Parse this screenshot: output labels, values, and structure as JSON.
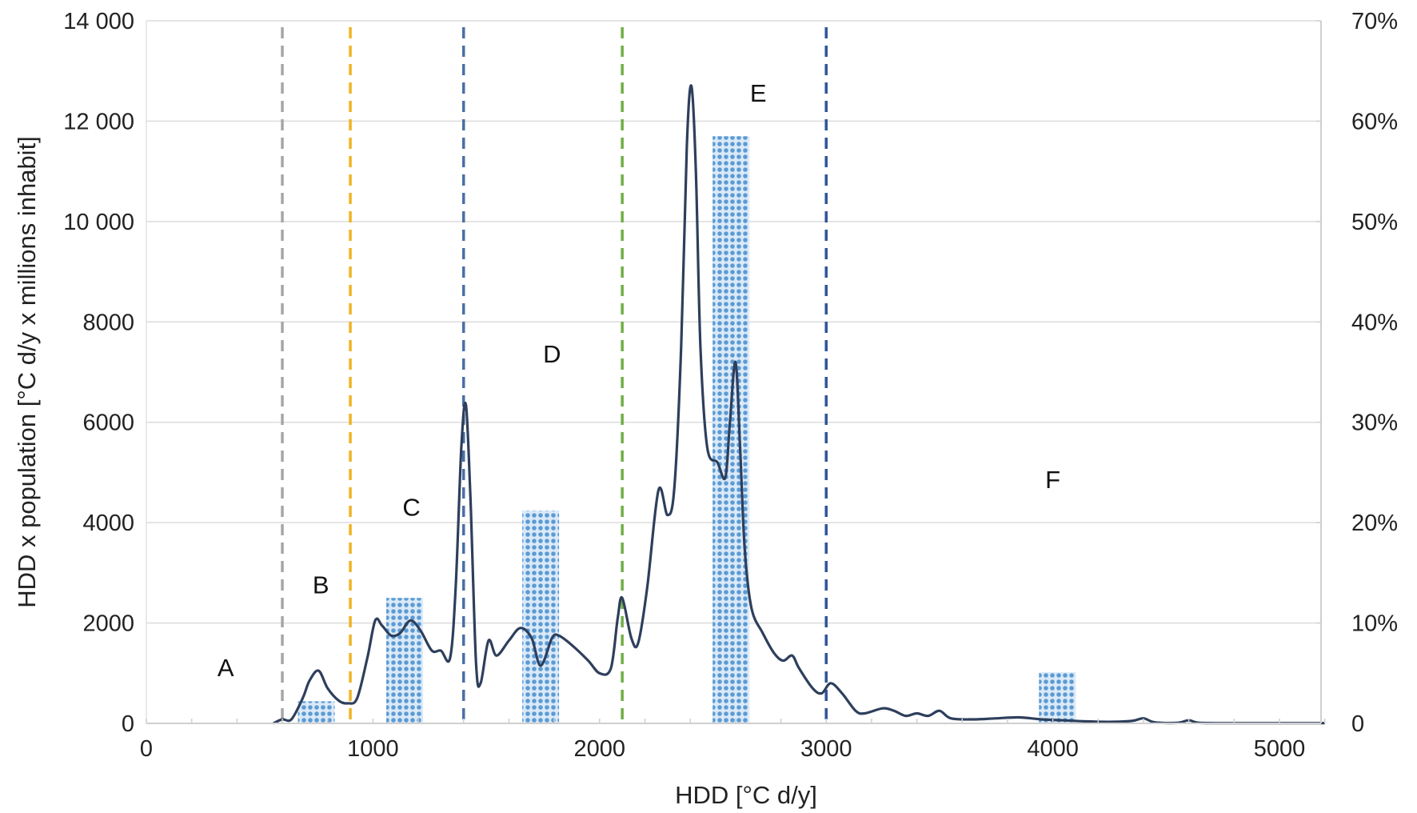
{
  "chart_data": {
    "type": "line",
    "xlabel": "HDD [°C d/y]",
    "ylabel": "HDD x population [°C d/y x millions inhabit]",
    "xlim": [
      0,
      5200
    ],
    "ylim_left": [
      0,
      14000
    ],
    "ylim_right": [
      0,
      0.7
    ],
    "grid": "horizontal",
    "x_ticks": [
      {
        "value": 0,
        "label": "0"
      },
      {
        "value": 1000,
        "label": "1000"
      },
      {
        "value": 2000,
        "label": "2000"
      },
      {
        "value": 3000,
        "label": "3000"
      },
      {
        "value": 4000,
        "label": "4000"
      },
      {
        "value": 5000,
        "label": "5000"
      }
    ],
    "y_ticks_left": [
      {
        "value": 0,
        "label": "0"
      },
      {
        "value": 2000,
        "label": "2000"
      },
      {
        "value": 4000,
        "label": "4000"
      },
      {
        "value": 6000,
        "label": "6000"
      },
      {
        "value": 8000,
        "label": "8000"
      },
      {
        "value": 10000,
        "label": "10 000"
      },
      {
        "value": 12000,
        "label": "12 000"
      },
      {
        "value": 14000,
        "label": "14 000"
      }
    ],
    "y_ticks_right": [
      {
        "value": 0,
        "label": "0"
      },
      {
        "value": 0.1,
        "label": "10%"
      },
      {
        "value": 0.2,
        "label": "20%"
      },
      {
        "value": 0.3,
        "label": "30%"
      },
      {
        "value": 0.4,
        "label": "40%"
      },
      {
        "value": 0.5,
        "label": "50%"
      },
      {
        "value": 0.6,
        "label": "60%"
      },
      {
        "value": 0.7,
        "label": "70%"
      }
    ],
    "bars": {
      "axis": "right",
      "color": "#5b9bd5",
      "items": [
        {
          "x": 750,
          "value": 0.022
        },
        {
          "x": 1140,
          "value": 0.125
        },
        {
          "x": 1740,
          "value": 0.212
        },
        {
          "x": 2580,
          "value": 0.585
        },
        {
          "x": 4020,
          "value": 0.051
        }
      ]
    },
    "boundaries": [
      {
        "x": 600,
        "color": "#a6a6a6"
      },
      {
        "x": 900,
        "color": "#f0b323"
      },
      {
        "x": 1400,
        "color": "#4a6fa5"
      },
      {
        "x": 2100,
        "color": "#70ad47"
      },
      {
        "x": 3000,
        "color": "#2f5597"
      }
    ],
    "regions": [
      {
        "label": "A",
        "x": 350,
        "y": 1100
      },
      {
        "label": "B",
        "x": 770,
        "y": 2750
      },
      {
        "label": "C",
        "x": 1170,
        "y": 4300
      },
      {
        "label": "D",
        "x": 1790,
        "y": 7350
      },
      {
        "label": "E",
        "x": 2700,
        "y": 12550
      },
      {
        "label": "F",
        "x": 4000,
        "y": 4850
      }
    ],
    "series": [
      {
        "axis": "left",
        "color": "#2e3f5c",
        "points": [
          [
            560,
            0
          ],
          [
            600,
            80
          ],
          [
            640,
            80
          ],
          [
            690,
            500
          ],
          [
            720,
            850
          ],
          [
            760,
            1050
          ],
          [
            800,
            700
          ],
          [
            850,
            450
          ],
          [
            890,
            400
          ],
          [
            930,
            500
          ],
          [
            975,
            1300
          ],
          [
            1010,
            2050
          ],
          [
            1040,
            1950
          ],
          [
            1080,
            1750
          ],
          [
            1120,
            1800
          ],
          [
            1165,
            2050
          ],
          [
            1210,
            1850
          ],
          [
            1260,
            1450
          ],
          [
            1300,
            1450
          ],
          [
            1340,
            1300
          ],
          [
            1365,
            2700
          ],
          [
            1390,
            5500
          ],
          [
            1410,
            6350
          ],
          [
            1430,
            4500
          ],
          [
            1455,
            1200
          ],
          [
            1475,
            800
          ],
          [
            1510,
            1650
          ],
          [
            1545,
            1350
          ],
          [
            1600,
            1650
          ],
          [
            1650,
            1900
          ],
          [
            1700,
            1700
          ],
          [
            1740,
            1150
          ],
          [
            1790,
            1700
          ],
          [
            1820,
            1750
          ],
          [
            1880,
            1550
          ],
          [
            1950,
            1250
          ],
          [
            2000,
            1000
          ],
          [
            2050,
            1100
          ],
          [
            2080,
            2100
          ],
          [
            2100,
            2500
          ],
          [
            2140,
            1700
          ],
          [
            2170,
            1600
          ],
          [
            2210,
            2700
          ],
          [
            2260,
            4650
          ],
          [
            2300,
            4150
          ],
          [
            2330,
            4700
          ],
          [
            2360,
            7500
          ],
          [
            2385,
            11500
          ],
          [
            2405,
            12700
          ],
          [
            2425,
            11000
          ],
          [
            2445,
            7500
          ],
          [
            2475,
            5500
          ],
          [
            2520,
            5200
          ],
          [
            2555,
            4900
          ],
          [
            2575,
            6000
          ],
          [
            2600,
            7200
          ],
          [
            2620,
            5500
          ],
          [
            2640,
            3500
          ],
          [
            2670,
            2300
          ],
          [
            2720,
            1800
          ],
          [
            2770,
            1400
          ],
          [
            2810,
            1250
          ],
          [
            2850,
            1350
          ],
          [
            2880,
            1100
          ],
          [
            2940,
            700
          ],
          [
            2980,
            600
          ],
          [
            3020,
            800
          ],
          [
            3070,
            600
          ],
          [
            3130,
            250
          ],
          [
            3170,
            200
          ],
          [
            3250,
            300
          ],
          [
            3300,
            250
          ],
          [
            3350,
            150
          ],
          [
            3400,
            200
          ],
          [
            3450,
            150
          ],
          [
            3500,
            250
          ],
          [
            3550,
            100
          ],
          [
            3650,
            80
          ],
          [
            3750,
            100
          ],
          [
            3850,
            120
          ],
          [
            3950,
            80
          ],
          [
            4050,
            60
          ],
          [
            4150,
            40
          ],
          [
            4250,
            30
          ],
          [
            4350,
            50
          ],
          [
            4400,
            100
          ],
          [
            4450,
            20
          ],
          [
            4550,
            10
          ],
          [
            4600,
            60
          ],
          [
            4650,
            10
          ],
          [
            4800,
            5
          ],
          [
            5000,
            5
          ],
          [
            5200,
            5
          ]
        ]
      }
    ]
  }
}
